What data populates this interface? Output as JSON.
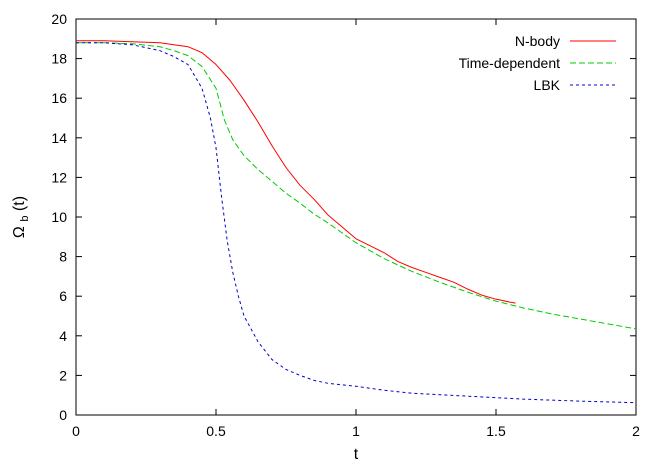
{
  "chart_data": {
    "type": "line",
    "title": "",
    "xlabel": "t",
    "ylabel": {
      "main": "Ω",
      "subscript": "b",
      "suffix": "(t)"
    },
    "xlim": [
      0,
      2
    ],
    "ylim": [
      0,
      20
    ],
    "x_ticks": [
      0,
      0.5,
      1,
      1.5,
      2
    ],
    "x_tick_labels": [
      "0",
      "0.5",
      "1",
      "1.5",
      "2"
    ],
    "y_ticks": [
      0,
      2,
      4,
      6,
      8,
      10,
      12,
      14,
      16,
      18,
      20
    ],
    "y_tick_labels": [
      "0",
      "2",
      "4",
      "6",
      "8",
      "10",
      "12",
      "14",
      "16",
      "18",
      "20"
    ],
    "grid": false,
    "legend_position": "top-right",
    "series": [
      {
        "name": "N-body",
        "color": "#ff0000",
        "dash": "solid",
        "x": [
          0,
          0.1,
          0.2,
          0.3,
          0.4,
          0.45,
          0.5,
          0.55,
          0.6,
          0.65,
          0.7,
          0.75,
          0.8,
          0.85,
          0.9,
          0.95,
          1.0,
          1.05,
          1.1,
          1.15,
          1.2,
          1.25,
          1.3,
          1.35,
          1.4,
          1.45,
          1.5,
          1.55,
          1.57
        ],
        "y": [
          18.9,
          18.9,
          18.85,
          18.8,
          18.6,
          18.3,
          17.7,
          16.9,
          15.9,
          14.8,
          13.6,
          12.5,
          11.6,
          10.9,
          10.1,
          9.5,
          8.9,
          8.55,
          8.2,
          7.75,
          7.45,
          7.2,
          6.95,
          6.7,
          6.35,
          6.05,
          5.85,
          5.7,
          5.65
        ]
      },
      {
        "name": "Time-dependent",
        "color": "#00cc00",
        "dash": "6,3",
        "x": [
          0,
          0.1,
          0.2,
          0.3,
          0.35,
          0.4,
          0.45,
          0.5,
          0.53,
          0.56,
          0.6,
          0.65,
          0.7,
          0.75,
          0.8,
          0.85,
          0.9,
          1.0,
          1.1,
          1.2,
          1.3,
          1.4,
          1.5,
          1.6,
          1.7,
          1.8,
          1.9,
          2.0
        ],
        "y": [
          18.8,
          18.8,
          18.75,
          18.6,
          18.4,
          18.15,
          17.6,
          16.5,
          14.9,
          13.9,
          13.1,
          12.4,
          11.8,
          11.2,
          10.7,
          10.15,
          9.7,
          8.7,
          7.9,
          7.25,
          6.7,
          6.2,
          5.75,
          5.4,
          5.1,
          4.85,
          4.6,
          4.35
        ]
      },
      {
        "name": "LBK",
        "color": "#0000cc",
        "dash": "3,3",
        "x": [
          0,
          0.1,
          0.2,
          0.3,
          0.35,
          0.4,
          0.45,
          0.48,
          0.5,
          0.52,
          0.54,
          0.56,
          0.58,
          0.6,
          0.65,
          0.7,
          0.75,
          0.8,
          0.85,
          0.9,
          1.0,
          1.1,
          1.2,
          1.4,
          1.6,
          1.8,
          2.0
        ],
        "y": [
          18.8,
          18.8,
          18.7,
          18.4,
          18.1,
          17.7,
          16.5,
          15.0,
          13.5,
          11.0,
          8.8,
          7.2,
          6.0,
          5.0,
          3.7,
          2.8,
          2.3,
          2.0,
          1.75,
          1.6,
          1.45,
          1.25,
          1.1,
          0.95,
          0.8,
          0.7,
          0.62
        ]
      }
    ]
  }
}
